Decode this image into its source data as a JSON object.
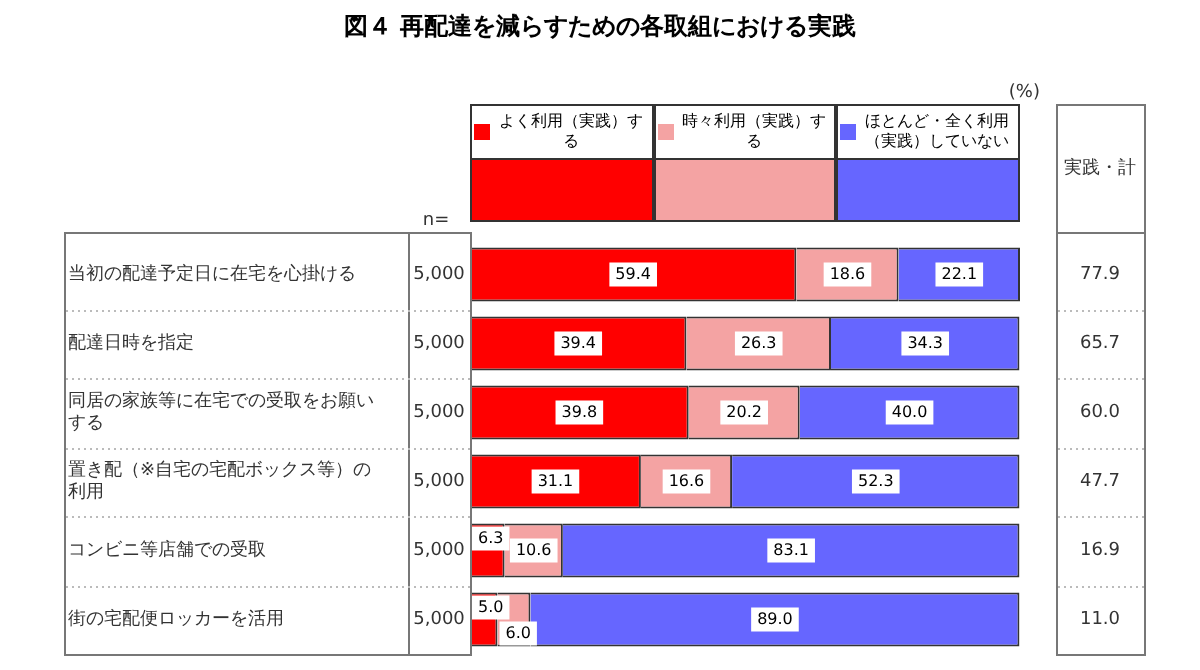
{
  "chart_data": {
    "type": "bar",
    "orientation": "horizontal",
    "stacked": true,
    "title": "図４ 再配達を減らすための各取組における実践",
    "categories": [
      "当初の配達予定日に在宅を心掛ける",
      "配達日時を指定",
      "同居の家族等に在宅での受取をお願いする",
      "置き配（※自宅の宅配ボックス等）の利用",
      "コンビニ等店舗での受取",
      "街の宅配便ロッカーを活用"
    ],
    "series": [
      {
        "name": "よく利用（実践）する",
        "color": "#ff0000",
        "values": [
          59.4,
          39.4,
          39.8,
          31.1,
          6.3,
          5.0
        ],
        "value_labels": [
          "59.4",
          "39.4",
          "39.8",
          "31.1",
          "6.3",
          "5.0"
        ]
      },
      {
        "name": "時々利用（実践）する",
        "color": "#f4a3a3",
        "values": [
          18.6,
          26.3,
          20.2,
          16.6,
          10.6,
          6.0
        ],
        "value_labels": [
          "18.6",
          "26.3",
          "20.2",
          "16.6",
          "10.6",
          "6.0"
        ]
      },
      {
        "name": "ほとんど・全く利用（実践）していない",
        "color": "#6666ff",
        "values": [
          22.1,
          34.3,
          40.0,
          52.3,
          83.1,
          89.0
        ],
        "value_labels": [
          "22.1",
          "34.3",
          "40.0",
          "52.3",
          "83.1",
          "89.0"
        ]
      }
    ],
    "legend": "top",
    "data_labels": true,
    "annotations": [
      "(%)",
      "n=",
      "実践・計",
      "5,000",
      "77.9",
      "5,000",
      "65.7",
      "5,000",
      "60.0",
      "5,000",
      "47.7",
      "5,000",
      "16.9",
      "5,000",
      "11.0"
    ]
  }
}
